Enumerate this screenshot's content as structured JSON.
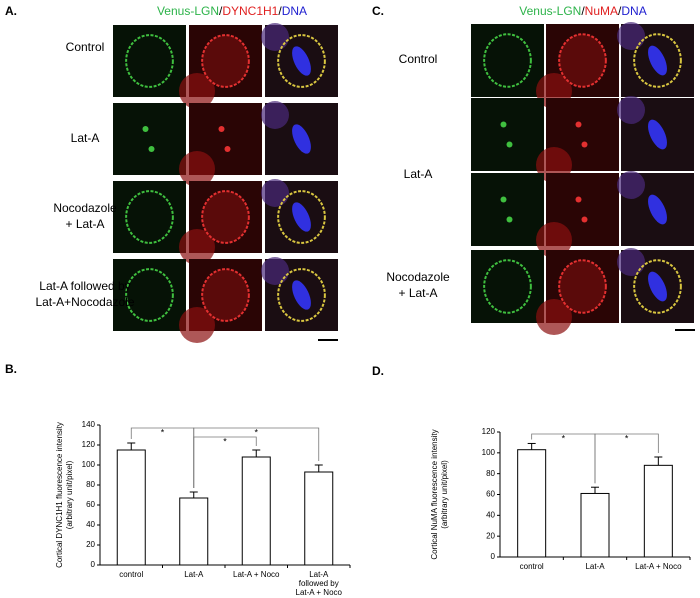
{
  "panels": [
    {
      "label": "A.",
      "header": [
        "Venus-LGN",
        "/",
        "DYNC1H1",
        "/",
        "DNA"
      ],
      "rows": [
        [
          "Control"
        ],
        [
          "Lat-A"
        ],
        [
          "Nocodazole",
          "+ Lat-A"
        ],
        [
          "Lat-A followed by",
          "Lat-A+Nocodazole"
        ]
      ]
    },
    {
      "label": "C.",
      "header": [
        "Venus-LGN",
        "/",
        "NuMA",
        "/",
        "DNA"
      ],
      "rows": [
        [
          "Control"
        ],
        [
          "Lat-A"
        ],
        [
          "Nocodazole",
          "+ Lat-A"
        ]
      ]
    }
  ],
  "chart_data": [
    {
      "type": "bar",
      "label": "B.",
      "y_label": [
        "Cortical DYNC1H1 fluorescence intensity",
        "(arbitrary unit/pixel)"
      ],
      "categories": [
        [
          "control"
        ],
        [
          "Lat-A"
        ],
        [
          "Lat-A + Noco"
        ],
        [
          "Lat-A",
          "followed by",
          "Lat-A + Noco"
        ]
      ],
      "values": [
        115,
        67,
        108,
        93
      ],
      "errors": [
        7,
        6,
        7,
        7
      ],
      "color": "#ffffff",
      "ylim": [
        0,
        140
      ],
      "yticks": [
        0,
        20,
        40,
        60,
        80,
        100,
        120,
        140
      ],
      "annotations": [
        "*",
        "*",
        "*"
      ]
    },
    {
      "type": "bar",
      "label": "D.",
      "y_label": [
        "Cortical NuMA fluorescence intensity",
        "(arbitrary unit/pixel)"
      ],
      "categories": [
        [
          "control"
        ],
        [
          "Lat-A"
        ],
        [
          "Lat-A + Noco"
        ]
      ],
      "values": [
        103,
        61,
        88
      ],
      "errors": [
        6,
        6,
        8
      ],
      "color": "#ffffff",
      "ylim": [
        0,
        120
      ],
      "yticks": [
        0,
        20,
        40,
        60,
        80,
        100,
        120
      ],
      "annotations": [
        "*",
        "*"
      ]
    }
  ]
}
